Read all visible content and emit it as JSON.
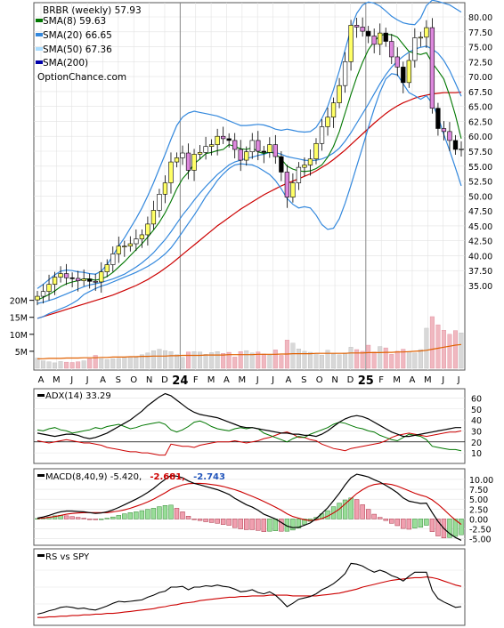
{
  "chart_data": {
    "type": "line",
    "title": "BRBR (weekly) 57.93",
    "watermark": "OptionChance.com",
    "x_month_labels": [
      "A",
      "M",
      "J",
      "J",
      "A",
      "S",
      "O",
      "N",
      "D",
      "24",
      "F",
      "M",
      "A",
      "M",
      "J",
      "J",
      "A",
      "S",
      "O",
      "N",
      "D",
      "25",
      "F",
      "M",
      "A",
      "M",
      "J",
      "J"
    ],
    "year_labels": [
      "24",
      "25"
    ],
    "price_panel": {
      "legend": [
        {
          "label": "SMA(8) 59.63",
          "color": "#007700"
        },
        {
          "label": "SMA(20) 66.65",
          "color": "#3388dd"
        },
        {
          "label": "SMA(50) 67.36",
          "color": "#aaddff"
        },
        {
          "label": "SMA(200)",
          "color": "#0000aa"
        }
      ],
      "y_ticks": [
        "35.00",
        "37.50",
        "40.00",
        "42.50",
        "45.00",
        "47.50",
        "50.00",
        "52.50",
        "55.00",
        "57.50",
        "60.00",
        "62.50",
        "65.00",
        "67.50",
        "70.00",
        "72.50",
        "75.00",
        "77.50",
        "80.00"
      ],
      "ylim": [
        33,
        81.5
      ],
      "close": [
        33.2,
        34.0,
        35.2,
        36.4,
        37.0,
        36.3,
        36.2,
        35.8,
        36.1,
        35.7,
        35.6,
        37.3,
        38.5,
        40.3,
        41.6,
        41.6,
        42.0,
        42.8,
        43.5,
        45.3,
        47.6,
        50.3,
        52.2,
        55.7,
        56.4,
        57.2,
        54.3,
        57.0,
        57.3,
        58.3,
        58.6,
        60.0,
        59.6,
        59.3,
        57.8,
        56.0,
        57.4,
        59.3,
        57.5,
        57.3,
        58.6,
        56.6,
        54.0,
        49.8,
        52.2,
        54.8,
        55.2,
        56.2,
        58.8,
        61.6,
        63.2,
        65.6,
        68.5,
        72.5,
        78.6,
        78.3,
        77.6,
        76.8,
        75.4,
        77.3,
        75.9,
        73.3,
        71.6,
        69.0,
        72.7,
        76.5,
        76.6,
        78.2,
        64.7,
        61.3,
        60.8,
        59.3,
        57.8,
        57.9
      ],
      "sma8": [
        32.6,
        33.0,
        33.5,
        34.1,
        34.8,
        35.3,
        35.6,
        35.8,
        36.1,
        36.1,
        35.9,
        36.1,
        36.5,
        37.2,
        38.1,
        39.0,
        40.0,
        41.0,
        42.0,
        43.1,
        44.3,
        45.6,
        47.2,
        49.1,
        51.2,
        52.9,
        54.0,
        55.4,
        56.2,
        57.1,
        57.3,
        57.6,
        57.8,
        58.6,
        58.3,
        57.9,
        57.8,
        58.1,
        57.4,
        57.1,
        57.4,
        57.1,
        56.2,
        55.0,
        54.5,
        54.2,
        54.1,
        54.2,
        54.6,
        55.2,
        56.5,
        58.3,
        60.8,
        63.9,
        67.0,
        69.9,
        72.4,
        74.5,
        75.9,
        76.9,
        77.1,
        77.0,
        76.6,
        75.4,
        74.2,
        73.9,
        73.7,
        74.0,
        72.3,
        71.0,
        69.6,
        66.8,
        63.5,
        59.6
      ],
      "sma20": [
        32.0,
        32.2,
        32.5,
        32.8,
        33.2,
        33.6,
        34.0,
        34.4,
        34.8,
        35.1,
        35.3,
        35.5,
        35.8,
        36.1,
        36.5,
        36.9,
        37.5,
        38.1,
        38.8,
        39.6,
        40.5,
        41.6,
        42.7,
        44.0,
        45.4,
        46.8,
        48.0,
        49.3,
        50.5,
        51.6,
        52.6,
        53.6,
        54.4,
        55.2,
        55.7,
        56.0,
        56.3,
        56.5,
        56.8,
        57.0,
        57.3,
        57.3,
        57.0,
        56.6,
        56.4,
        56.2,
        56.0,
        55.9,
        56.0,
        56.2,
        56.6,
        57.2,
        58.0,
        59.2,
        60.6,
        62.2,
        63.8,
        65.4,
        67.1,
        68.8,
        70.3,
        71.6,
        72.6,
        73.4,
        74.1,
        74.6,
        74.9,
        75.1,
        74.6,
        73.9,
        72.7,
        71.0,
        68.9,
        66.7
      ],
      "sma50": [
        29.5,
        29.8,
        30.1,
        30.4,
        30.7,
        31.0,
        31.3,
        31.6,
        31.9,
        32.2,
        32.5,
        32.8,
        33.1,
        33.4,
        33.8,
        34.2,
        34.6,
        35.0,
        35.5,
        36.0,
        36.6,
        37.2,
        37.9,
        38.6,
        39.4,
        40.2,
        41.0,
        41.8,
        42.6,
        43.4,
        44.2,
        45.0,
        45.7,
        46.4,
        47.1,
        47.8,
        48.4,
        49.0,
        49.6,
        50.2,
        50.7,
        51.2,
        51.7,
        52.1,
        52.5,
        52.9,
        53.3,
        53.7,
        54.2,
        54.8,
        55.4,
        56.1,
        56.9,
        57.7,
        58.6,
        59.5,
        60.4,
        61.3,
        62.2,
        63.0,
        63.8,
        64.5,
        65.1,
        65.6,
        66.0,
        66.4,
        66.7,
        66.9,
        67.1,
        67.2,
        67.3,
        67.3,
        67.3,
        67.4
      ],
      "bb_upper": [
        34.5,
        35.2,
        36.0,
        36.8,
        37.4,
        37.6,
        37.5,
        37.3,
        37.2,
        37.0,
        36.9,
        37.4,
        38.5,
        40.0,
        41.6,
        43.0,
        44.6,
        46.2,
        48.0,
        50.0,
        52.2,
        54.6,
        57.0,
        59.5,
        61.8,
        63.2,
        63.9,
        64.2,
        64.0,
        63.8,
        63.6,
        63.4,
        63.0,
        62.6,
        62.2,
        61.8,
        61.8,
        61.9,
        62.0,
        61.9,
        61.6,
        61.2,
        61.0,
        61.2,
        61.0,
        60.8,
        60.7,
        60.8,
        61.5,
        63.0,
        65.0,
        67.8,
        71.0,
        74.5,
        78.0,
        80.6,
        82.0,
        82.5,
        82.3,
        81.8,
        81.0,
        80.1,
        79.5,
        79.0,
        78.8,
        78.7,
        79.8,
        81.9,
        82.8,
        82.6,
        82.3,
        82.0,
        81.4,
        80.8
      ],
      "bb_lower": [
        29.5,
        29.8,
        30.3,
        30.7,
        31.1,
        31.5,
        32.0,
        32.6,
        33.5,
        34.0,
        34.5,
        34.9,
        35.2,
        35.6,
        36.0,
        36.4,
        36.8,
        37.2,
        37.7,
        38.2,
        38.8,
        39.5,
        40.3,
        41.3,
        42.6,
        44.0,
        45.4,
        46.8,
        48.3,
        49.9,
        51.2,
        52.6,
        53.7,
        54.6,
        55.2,
        55.4,
        55.3,
        55.2,
        54.8,
        54.2,
        53.6,
        52.6,
        51.2,
        49.6,
        48.6,
        48.0,
        48.2,
        48.0,
        46.8,
        45.2,
        44.4,
        44.6,
        46.2,
        48.8,
        51.8,
        55.0,
        58.2,
        61.5,
        64.6,
        67.4,
        69.6,
        70.5,
        70.3,
        68.8,
        67.3,
        66.8,
        66.2,
        66.8,
        65.5,
        63.3,
        60.3,
        57.6,
        54.7,
        51.7
      ],
      "ohlc_note": "weekly candles derived from close series"
    },
    "volume_panel": {
      "y_ticks": [
        "5M",
        "10M",
        "15M",
        "20M"
      ],
      "ylim": [
        0,
        22
      ],
      "volume": [
        3.0,
        2.2,
        1.9,
        1.6,
        2.0,
        1.8,
        1.7,
        1.9,
        2.2,
        2.8,
        3.8,
        2.8,
        2.6,
        2.8,
        2.9,
        3.2,
        3.4,
        3.2,
        4.0,
        4.5,
        5.2,
        5.6,
        5.2,
        4.9,
        4.0,
        3.2,
        4.8,
        4.9,
        4.8,
        4.1,
        4.6,
        4.9,
        4.4,
        4.7,
        3.3,
        4.9,
        5.2,
        4.5,
        4.8,
        4.2,
        3.9,
        5.4,
        3.8,
        8.3,
        7.4,
        5.7,
        5.0,
        4.7,
        4.4,
        3.9,
        5.3,
        4.2,
        4.0,
        4.5,
        6.2,
        5.5,
        5.0,
        6.8,
        4.8,
        6.4,
        6.0,
        4.1,
        5.0,
        5.6,
        4.9,
        4.5,
        5.5,
        11.8,
        15.2,
        12.8,
        11.2,
        10.0,
        11.1,
        10.4
      ],
      "spike_volume": [
        15.8,
        15.6,
        15.5
      ],
      "vol_avg": [
        2.8,
        2.8,
        2.9,
        2.9,
        2.9,
        3.0,
        3.0,
        3.0,
        3.1,
        3.1,
        3.1,
        3.2,
        3.2,
        3.3,
        3.3,
        3.3,
        3.4,
        3.4,
        3.5,
        3.5,
        3.6,
        3.6,
        3.6,
        3.7,
        3.7,
        3.8,
        3.8,
        3.8,
        3.8,
        3.9,
        3.9,
        3.9,
        3.9,
        4.0,
        4.0,
        4.0,
        4.0,
        4.0,
        4.1,
        4.1,
        4.1,
        4.1,
        4.2,
        4.2,
        4.3,
        4.3,
        4.3,
        4.3,
        4.4,
        4.4,
        4.4,
        4.4,
        4.4,
        4.4,
        4.5,
        4.5,
        4.5,
        4.6,
        4.6,
        4.6,
        4.7,
        4.7,
        4.8,
        4.8,
        4.9,
        5.0,
        5.1,
        5.3,
        5.6,
        5.9,
        6.2,
        6.5,
        6.8,
        7.0
      ]
    },
    "adx_panel": {
      "label": "ADX(14) 33.29",
      "y_ticks": [
        "10",
        "20",
        "30",
        "40",
        "50",
        "60"
      ],
      "ylim": [
        2,
        66
      ],
      "adx": [
        28,
        27,
        26,
        25,
        26,
        27,
        27,
        26,
        24,
        23,
        24,
        26,
        28,
        31,
        34,
        37,
        40,
        44,
        48,
        53,
        57,
        61,
        64,
        62,
        58,
        54,
        50,
        47,
        45,
        44,
        43,
        42,
        40,
        38,
        36,
        34,
        33,
        33,
        32,
        31,
        30,
        29,
        28,
        28,
        27,
        27,
        26,
        26,
        25,
        27,
        30,
        34,
        38,
        41,
        43,
        44,
        43,
        41,
        38,
        35,
        32,
        29,
        27,
        25,
        25,
        26,
        27,
        28,
        29,
        30,
        31,
        32,
        33,
        33
      ],
      "plus_di": [
        31,
        30,
        32,
        33,
        31,
        30,
        28,
        29,
        30,
        31,
        33,
        32,
        34,
        35,
        36,
        34,
        32,
        33,
        35,
        36,
        37,
        38,
        36,
        31,
        29,
        31,
        34,
        38,
        39,
        37,
        34,
        32,
        31,
        30,
        32,
        33,
        32,
        33,
        32,
        28,
        26,
        24,
        22,
        20,
        23,
        25,
        24,
        27,
        29,
        31,
        33,
        36,
        38,
        37,
        35,
        33,
        32,
        30,
        29,
        26,
        24,
        22,
        21,
        24,
        27,
        26,
        25,
        22,
        16,
        15,
        14,
        13,
        13,
        12
      ],
      "minus_di": [
        21,
        20,
        19,
        20,
        21,
        22,
        21,
        20,
        19,
        19,
        18,
        17,
        15,
        14,
        13,
        12,
        11,
        11,
        10,
        10,
        9,
        8,
        8,
        18,
        17,
        16,
        16,
        15,
        17,
        18,
        19,
        20,
        20,
        20,
        21,
        20,
        19,
        20,
        21,
        23,
        24,
        26,
        28,
        29,
        27,
        24,
        24,
        22,
        21,
        18,
        16,
        14,
        13,
        12,
        14,
        15,
        16,
        17,
        18,
        19,
        21,
        24,
        26,
        27,
        28,
        27,
        26,
        25,
        26,
        27,
        28,
        29,
        29,
        30
      ],
      "ref_line": 20
    },
    "macd_panel": {
      "label": "MACD(8,40,9) -5.420,",
      "value_red": "-2.681,",
      "value_blue": "-2.743",
      "y_ticks": [
        "-5.00",
        "-2.50",
        "0.00",
        "2.50",
        "5.00",
        "7.50",
        "10.00"
      ],
      "ylim": [
        -6.2,
        12
      ],
      "macd": [
        0.2,
        0.5,
        0.9,
        1.4,
        1.8,
        2.0,
        2.0,
        1.9,
        1.8,
        1.6,
        1.4,
        1.5,
        1.8,
        2.3,
        2.9,
        3.6,
        4.3,
        5.0,
        5.8,
        6.7,
        7.7,
        8.9,
        10.0,
        11.0,
        10.8,
        10.4,
        9.6,
        9.0,
        8.6,
        8.2,
        7.8,
        7.4,
        6.8,
        6.2,
        5.2,
        4.4,
        3.6,
        3.0,
        2.2,
        1.2,
        0.6,
        0.0,
        -0.9,
        -1.8,
        -2.2,
        -2.1,
        -1.6,
        -1.0,
        0.1,
        1.4,
        2.8,
        4.6,
        6.5,
        8.6,
        10.4,
        11.3,
        11.0,
        10.6,
        9.9,
        9.3,
        8.5,
        7.6,
        6.6,
        5.3,
        4.5,
        4.2,
        3.9,
        4.0,
        1.6,
        -0.6,
        -2.4,
        -3.7,
        -4.7,
        -5.4
      ],
      "signal": [
        0.1,
        0.2,
        0.4,
        0.6,
        0.9,
        1.2,
        1.4,
        1.5,
        1.6,
        1.6,
        1.6,
        1.6,
        1.6,
        1.8,
        2.0,
        2.3,
        2.7,
        3.2,
        3.7,
        4.3,
        5.0,
        5.8,
        6.6,
        7.5,
        8.1,
        8.6,
        8.9,
        9.0,
        9.0,
        8.9,
        8.7,
        8.5,
        8.2,
        7.8,
        7.4,
        6.9,
        6.3,
        5.7,
        5.1,
        4.4,
        3.7,
        3.0,
        2.2,
        1.3,
        0.6,
        0.2,
        -0.2,
        -0.4,
        -0.3,
        0.1,
        0.7,
        1.5,
        2.5,
        3.8,
        5.1,
        6.4,
        7.4,
        8.2,
        8.7,
        8.9,
        8.9,
        8.7,
        8.3,
        7.7,
        7.1,
        6.5,
        6.0,
        5.6,
        4.8,
        3.7,
        2.4,
        1.0,
        -0.3,
        -1.4
      ],
      "label_colors": {
        "red": "#cc0000",
        "blue": "#2255bb"
      }
    },
    "rs_panel": {
      "label": "RS vs SPY",
      "ylim": [
        0,
        100
      ],
      "rs": [
        10,
        12,
        15,
        17,
        20,
        21,
        20,
        18,
        19,
        17,
        16,
        19,
        22,
        26,
        29,
        28,
        29,
        30,
        31,
        35,
        38,
        42,
        44,
        50,
        50,
        51,
        46,
        50,
        50,
        52,
        51,
        53,
        51,
        50,
        47,
        43,
        44,
        46,
        42,
        40,
        43,
        38,
        30,
        21,
        26,
        32,
        34,
        36,
        40,
        46,
        50,
        55,
        62,
        70,
        85,
        84,
        81,
        76,
        72,
        75,
        72,
        67,
        64,
        59,
        66,
        72,
        72,
        72,
        45,
        33,
        28,
        24,
        20,
        21
      ],
      "rs_ma": [
        5,
        5,
        6,
        6,
        7,
        7,
        8,
        8,
        9,
        9,
        10,
        10,
        11,
        11,
        12,
        13,
        14,
        15,
        16,
        17,
        18,
        20,
        21,
        23,
        24,
        26,
        27,
        28,
        30,
        31,
        32,
        33,
        34,
        35,
        35,
        36,
        36,
        37,
        37,
        37,
        38,
        38,
        38,
        38,
        37,
        37,
        37,
        37,
        37,
        38,
        39,
        40,
        41,
        43,
        45,
        47,
        50,
        52,
        54,
        56,
        58,
        60,
        61,
        62,
        63,
        64,
        64,
        65,
        64,
        62,
        59,
        56,
        53,
        51
      ]
    }
  }
}
